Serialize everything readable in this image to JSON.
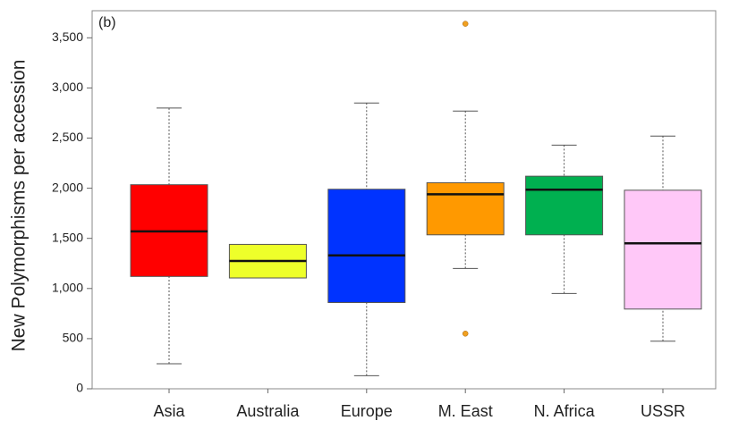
{
  "chart_data": {
    "type": "box",
    "annotation": "(b)",
    "y_label": "New Polymorphisms per accession",
    "categories": [
      "Asia",
      "Australia",
      "Europe",
      "M. East",
      "N. Africa",
      "USSR"
    ],
    "colors": [
      "#ff0000",
      "#eeff2a",
      "#0033ff",
      "#ff9900",
      "#00b050",
      "#ffc8f8"
    ],
    "boxes": [
      {
        "min": 250,
        "q1": 1120,
        "median": 1570,
        "q3": 2035,
        "max": 2800,
        "outliers": []
      },
      {
        "min": 1105,
        "q1": 1105,
        "median": 1275,
        "q3": 1440,
        "max": 1440,
        "outliers": []
      },
      {
        "min": 130,
        "q1": 860,
        "median": 1330,
        "q3": 1990,
        "max": 2850,
        "outliers": []
      },
      {
        "min": 1200,
        "q1": 1535,
        "median": 1940,
        "q3": 2055,
        "max": 2770,
        "outliers": [
          3640,
          550
        ]
      },
      {
        "min": 950,
        "q1": 1535,
        "median": 1985,
        "q3": 2120,
        "max": 2430,
        "outliers": []
      },
      {
        "min": 475,
        "q1": 795,
        "median": 1450,
        "q3": 1980,
        "max": 2520,
        "outliers": []
      }
    ],
    "outlier_color": "#f0a020",
    "ylim": [
      0,
      3770
    ],
    "yticks": [
      0,
      500,
      {
        "value": 1000,
        "label": "1,000"
      },
      {
        "value": 1500,
        "label": "1,500"
      },
      {
        "value": 2000,
        "label": "2,000"
      },
      {
        "value": 2500,
        "label": "2,500"
      },
      {
        "value": 3000,
        "label": "3,000"
      },
      {
        "value": 3500,
        "label": "3,500"
      }
    ]
  }
}
